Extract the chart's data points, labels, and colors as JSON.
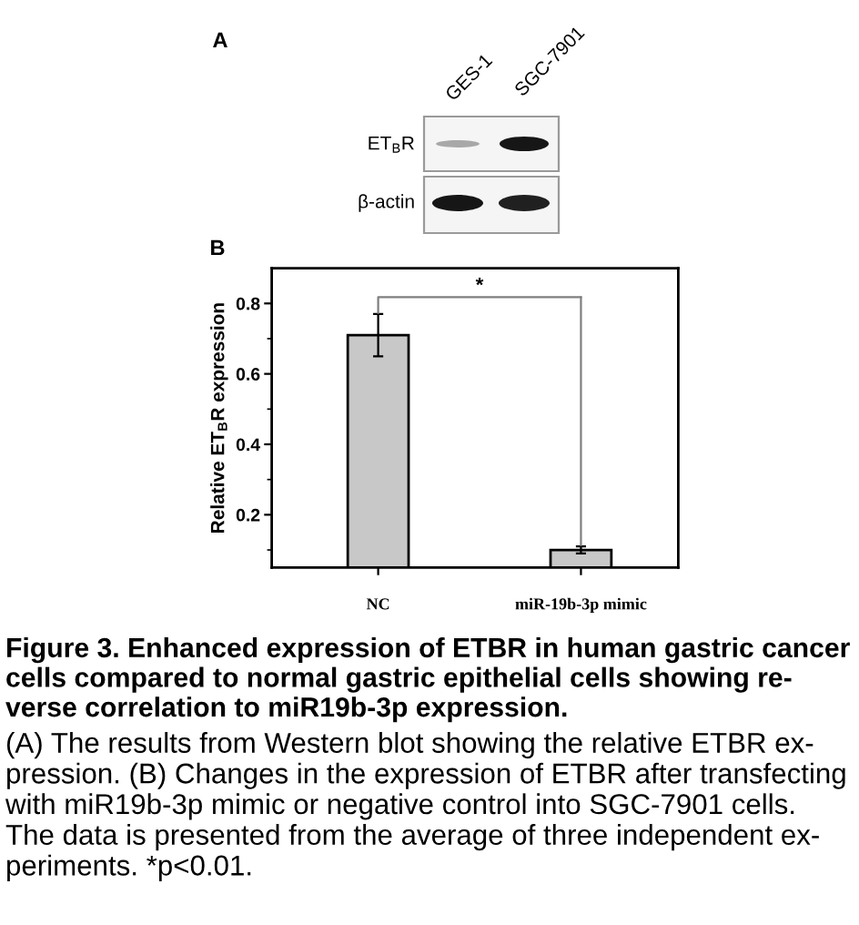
{
  "chart_data": {
    "type": "bar",
    "title": "Figure 3. Enhanced expression of ETBR in human gastric cancer\ncells compared to normal gastric epithelial cells showing re-\nverse correlation to miR19b-3p expression.",
    "ylabel": "Relative ET$_{B}$R expression",
    "categories": [
      "NC",
      "miR-19b-3p mimic"
    ],
    "values": [
      0.71,
      0.1
    ],
    "errors": [
      0.06,
      0.01
    ],
    "color": "#c8c8c8",
    "ylim": [
      0.05,
      0.9
    ],
    "yticks": [
      {
        "value": 0.1,
        "label": null
      },
      0.2,
      {
        "value": 0.3,
        "label": null
      },
      0.4,
      {
        "value": 0.5,
        "label": null
      },
      0.6,
      {
        "value": 0.7,
        "label": null
      },
      0.8
    ],
    "grid": false,
    "annotations": [
      "A",
      "GES-1",
      "SGC-7901",
      "ET$_{B}$R",
      "β-actin",
      "B",
      "*",
      "(A) The results from Western blot showing the relative ETBR ex-\npression. (B) Changes in the expression of ETBR after transfecting\nwith miR19b-3p mimic or negative control into SGC-7901 cells.\nThe data is presented from the average of three independent ex-\nperiments. *p<0.01."
    ]
  }
}
